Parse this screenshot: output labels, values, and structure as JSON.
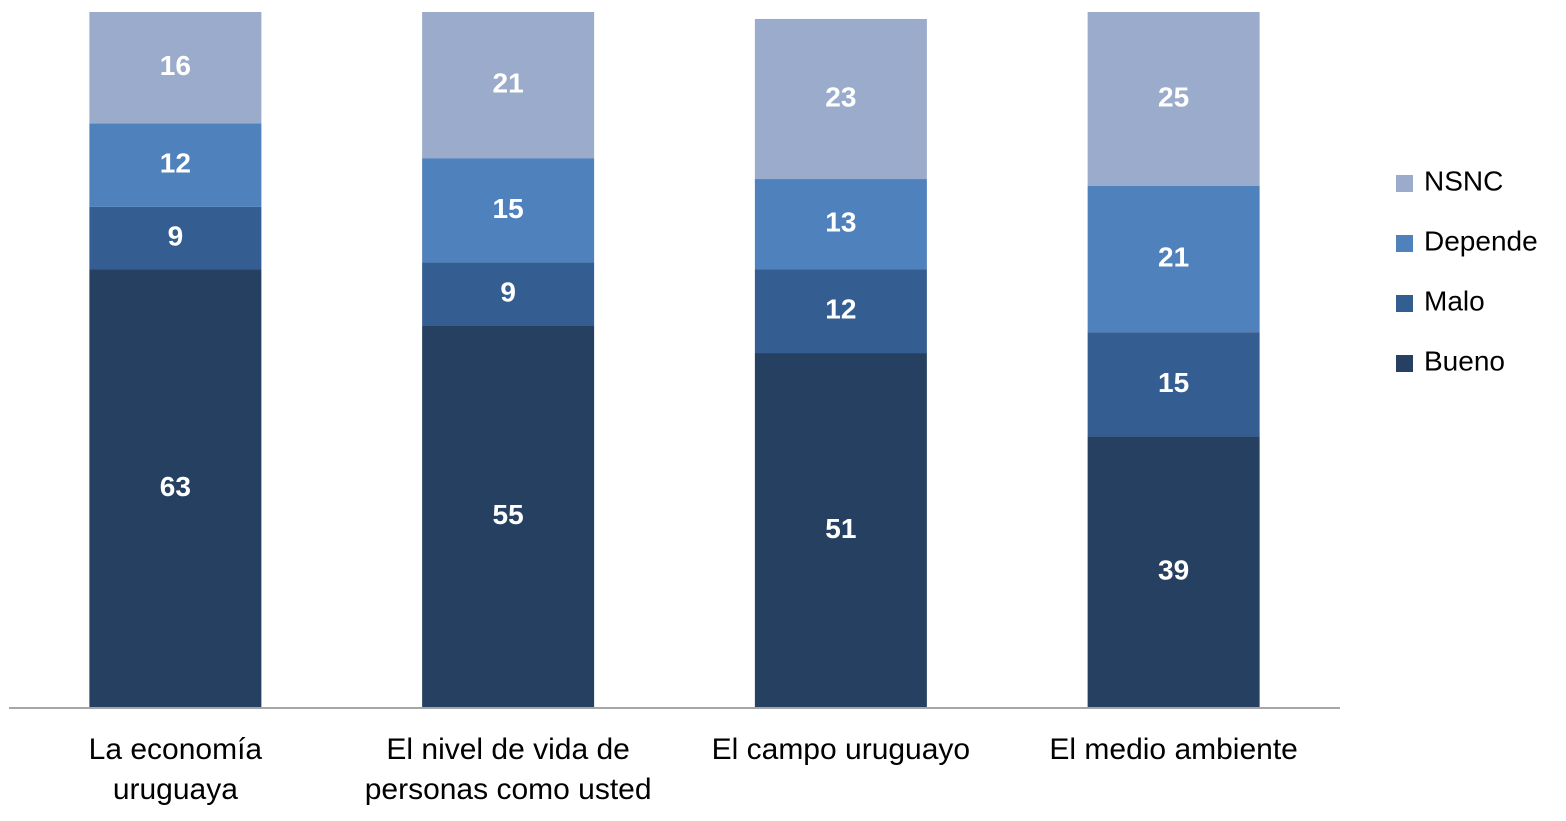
{
  "chart_data": {
    "type": "stacked_bar",
    "categories": [
      "La economía\nuruguaya",
      "El nivel de vida de\npersonas como usted",
      "El campo uruguayo",
      "El medio ambiente"
    ],
    "series": [
      {
        "name": "Bueno",
        "color": "#264061",
        "values": [
          63,
          55,
          51,
          39
        ]
      },
      {
        "name": "Malo",
        "color": "#345d91",
        "values": [
          9,
          9,
          12,
          15
        ]
      },
      {
        "name": "Depende",
        "color": "#4f81bd",
        "values": [
          12,
          15,
          13,
          21
        ]
      },
      {
        "name": "NSNC",
        "color": "#9babcb",
        "values": [
          16,
          21,
          23,
          25
        ]
      }
    ],
    "ylim": [
      0,
      100
    ],
    "legend": "right"
  }
}
